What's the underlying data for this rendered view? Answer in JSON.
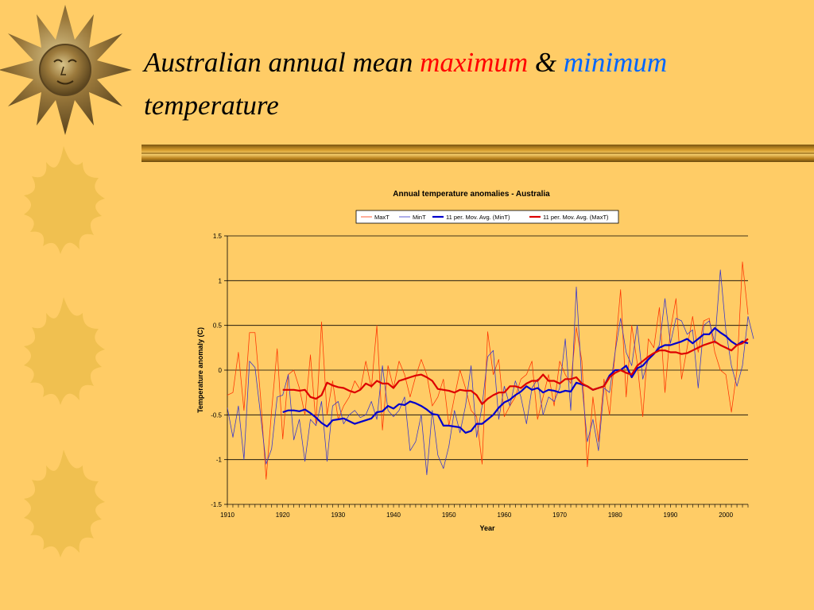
{
  "slide": {
    "title_part1": "Australian annual mean",
    "title_max": "maximum",
    "title_amp": "&",
    "title_min": "minimum",
    "title_part2": "temperature"
  },
  "colors": {
    "background": "#ffcc66",
    "maximum_word": "#ff0000",
    "minimum_word": "#0066ff",
    "maxT": "#ff3300",
    "minT": "#3333cc",
    "mov_avg_min": "#0000cc",
    "mov_avg_max": "#dd0000",
    "gridline": "#000000"
  },
  "decor": {
    "icons": [
      "bronze-sun-face-icon",
      "sun-icon",
      "sun-icon",
      "sun-icon"
    ]
  },
  "chart_data": {
    "type": "line",
    "title": "Annual temperature anomalies - Australia",
    "xlabel": "Year",
    "ylabel": "Temperature anomaly (C)",
    "xlim": [
      1910,
      2004
    ],
    "ylim": [
      -1.5,
      1.5
    ],
    "x_ticks": [
      1910,
      1920,
      1930,
      1940,
      1950,
      1960,
      1970,
      1980,
      1990,
      2000
    ],
    "y_ticks": [
      1.5,
      1,
      0.5,
      0,
      -0.5,
      -1,
      -1.5
    ],
    "y_tick_labels": [
      "1.5",
      "1",
      "0.5",
      "0",
      "-0.5",
      "-1",
      "-1.5"
    ],
    "grid": "horizontal",
    "legend_position": "top",
    "legend": [
      "MaxT",
      "MinT",
      "11 per. Mov. Avg. (MinT)",
      "11 per. Mov. Avg. (MaxT)"
    ],
    "series": [
      {
        "name": "MaxT",
        "color": "#ff3300",
        "style": "thin",
        "x_start": 1910,
        "values": [
          -0.28,
          -0.25,
          0.2,
          -0.45,
          0.42,
          0.42,
          -0.3,
          -1.22,
          -0.45,
          0.24,
          -0.77,
          -0.05,
          0.0,
          -0.2,
          -0.5,
          0.17,
          -0.6,
          0.54,
          -0.5,
          -0.12,
          -0.55,
          -0.4,
          -0.3,
          -0.12,
          -0.22,
          0.1,
          -0.2,
          0.5,
          -0.67,
          0.05,
          -0.2,
          0.1,
          -0.05,
          -0.3,
          -0.07,
          0.12,
          -0.05,
          -0.4,
          -0.3,
          -0.1,
          -0.62,
          -0.3,
          0.0,
          -0.2,
          -0.45,
          -0.52,
          -1.05,
          0.43,
          -0.05,
          0.12,
          -0.52,
          -0.4,
          -0.3,
          -0.1,
          -0.05,
          0.1,
          -0.55,
          -0.3,
          -0.05,
          -0.4,
          0.1,
          -0.05,
          -0.15,
          0.48,
          0.1,
          -1.08,
          -0.3,
          -0.8,
          -0.1,
          -0.5,
          0.2,
          0.9,
          -0.3,
          0.5,
          0.08,
          -0.52,
          0.35,
          0.25,
          0.7,
          -0.25,
          0.45,
          0.8,
          -0.1,
          0.25,
          0.6,
          0.2,
          0.55,
          0.58,
          0.2,
          0.0,
          -0.05,
          -0.47,
          0.0,
          1.21,
          0.62
        ]
      },
      {
        "name": "MinT",
        "color": "#3333cc",
        "style": "thin",
        "x_start": 1910,
        "values": [
          -0.42,
          -0.75,
          -0.4,
          -1.0,
          0.1,
          0.03,
          -0.5,
          -1.05,
          -0.88,
          -0.3,
          -0.28,
          -0.05,
          -0.78,
          -0.55,
          -1.02,
          -0.55,
          -0.62,
          -0.35,
          -1.02,
          -0.4,
          -0.35,
          -0.6,
          -0.5,
          -0.45,
          -0.53,
          -0.5,
          -0.35,
          -0.55,
          0.05,
          -0.45,
          -0.52,
          -0.45,
          -0.3,
          -0.9,
          -0.8,
          -0.5,
          -1.17,
          -0.45,
          -0.95,
          -1.1,
          -0.85,
          -0.45,
          -0.7,
          -0.4,
          0.05,
          -0.75,
          -0.4,
          0.15,
          0.22,
          -0.55,
          -0.18,
          -0.4,
          -0.12,
          -0.3,
          -0.6,
          -0.2,
          -0.1,
          -0.5,
          -0.3,
          -0.35,
          -0.2,
          0.35,
          -0.45,
          0.93,
          -0.15,
          -0.8,
          -0.55,
          -0.9,
          -0.2,
          -0.25,
          0.2,
          0.58,
          0.2,
          0.05,
          0.5,
          -0.1,
          0.12,
          0.18,
          0.28,
          0.8,
          0.3,
          0.58,
          0.55,
          0.4,
          0.45,
          -0.2,
          0.5,
          0.55,
          0.3,
          1.12,
          0.45,
          0.05,
          -0.18,
          0.05,
          0.6,
          0.35
        ]
      },
      {
        "name": "11 per. Mov. Avg. (MinT)",
        "color": "#0000cc",
        "style": "thick",
        "x_start": 1920,
        "values": [
          -0.47,
          -0.45,
          -0.45,
          -0.46,
          -0.44,
          -0.48,
          -0.53,
          -0.59,
          -0.63,
          -0.56,
          -0.55,
          -0.54,
          -0.57,
          -0.6,
          -0.58,
          -0.56,
          -0.54,
          -0.47,
          -0.46,
          -0.4,
          -0.43,
          -0.38,
          -0.39,
          -0.35,
          -0.37,
          -0.4,
          -0.44,
          -0.49,
          -0.5,
          -0.62,
          -0.62,
          -0.63,
          -0.64,
          -0.7,
          -0.68,
          -0.6,
          -0.6,
          -0.55,
          -0.5,
          -0.42,
          -0.36,
          -0.33,
          -0.28,
          -0.24,
          -0.18,
          -0.22,
          -0.2,
          -0.25,
          -0.22,
          -0.23,
          -0.25,
          -0.23,
          -0.24,
          -0.14,
          -0.16,
          -0.18,
          -0.22,
          -0.2,
          -0.18,
          -0.06,
          0.0,
          0.0,
          0.05,
          -0.08,
          0.02,
          0.05,
          0.12,
          0.18,
          0.25,
          0.28,
          0.28,
          0.3,
          0.32,
          0.35,
          0.3,
          0.35,
          0.4,
          0.4,
          0.47,
          0.42,
          0.38,
          0.32,
          0.28,
          0.32,
          0.3
        ]
      },
      {
        "name": "11 per. Mov. Avg. (MaxT)",
        "color": "#dd0000",
        "style": "thick",
        "x_start": 1920,
        "values": [
          -0.22,
          -0.22,
          -0.22,
          -0.23,
          -0.22,
          -0.3,
          -0.32,
          -0.28,
          -0.14,
          -0.17,
          -0.19,
          -0.2,
          -0.23,
          -0.25,
          -0.22,
          -0.15,
          -0.18,
          -0.12,
          -0.15,
          -0.15,
          -0.2,
          -0.12,
          -0.1,
          -0.08,
          -0.06,
          -0.05,
          -0.08,
          -0.12,
          -0.21,
          -0.22,
          -0.23,
          -0.25,
          -0.22,
          -0.23,
          -0.23,
          -0.28,
          -0.38,
          -0.32,
          -0.28,
          -0.25,
          -0.25,
          -0.18,
          -0.18,
          -0.2,
          -0.15,
          -0.12,
          -0.12,
          -0.05,
          -0.12,
          -0.12,
          -0.15,
          -0.1,
          -0.1,
          -0.08,
          -0.15,
          -0.18,
          -0.22,
          -0.2,
          -0.18,
          -0.08,
          -0.03,
          0.0,
          -0.03,
          -0.05,
          0.05,
          0.1,
          0.15,
          0.19,
          0.22,
          0.22,
          0.2,
          0.2,
          0.18,
          0.19,
          0.22,
          0.25,
          0.28,
          0.3,
          0.32,
          0.28,
          0.25,
          0.22,
          0.28,
          0.3,
          0.35
        ]
      }
    ]
  }
}
